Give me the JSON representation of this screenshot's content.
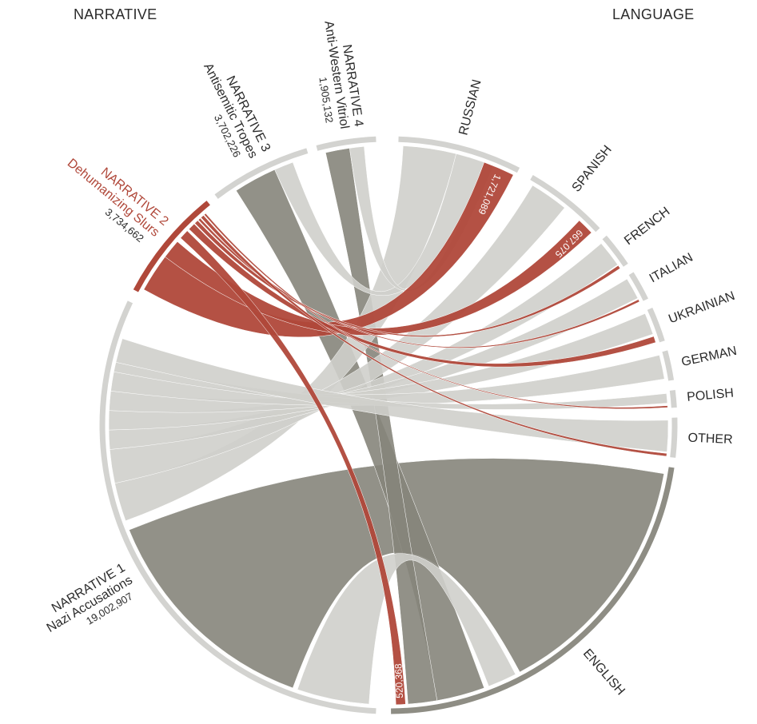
{
  "headers": {
    "left": "NARRATIVE",
    "right": "LANGUAGE"
  },
  "colors": {
    "highlight": "#b0483a",
    "narrative_dark": "#86857b",
    "language_light": "#cfcfcb",
    "arc_dark": "#8e8d84",
    "arc_light": "#d3d3d0",
    "text": "#2b2b2b"
  },
  "narratives": [
    {
      "id": "n1",
      "line1": "NARRATIVE 1",
      "line2": "Nazi Accusations",
      "value_label": "19,002,907",
      "value": 19002907,
      "highlight": false
    },
    {
      "id": "n2",
      "line1": "NARRATIVE 2",
      "line2": "Dehumanizing Slurs",
      "value_label": "3,734,662",
      "value": 3734662,
      "highlight": true
    },
    {
      "id": "n3",
      "line1": "NARRATIVE 3",
      "line2": "Antisemitic Tropes",
      "value_label": "3,702,226",
      "value": 3702226,
      "highlight": false
    },
    {
      "id": "n4",
      "line1": "NARRATIVE 4",
      "line2": "Anti-Western Vitriol",
      "value_label": "1,905,132",
      "value": 1905132,
      "highlight": false
    }
  ],
  "languages": [
    {
      "id": "russian",
      "label": "RUSSIAN"
    },
    {
      "id": "spanish",
      "label": "SPANISH"
    },
    {
      "id": "french",
      "label": "FRENCH"
    },
    {
      "id": "italian",
      "label": "ITALIAN"
    },
    {
      "id": "ukrainian",
      "label": "UKRAINIAN"
    },
    {
      "id": "german",
      "label": "GERMAN"
    },
    {
      "id": "polish",
      "label": "POLISH"
    },
    {
      "id": "other",
      "label": "OTHER"
    },
    {
      "id": "english",
      "label": "ENGLISH"
    }
  ],
  "highlight_flows": [
    {
      "language": "russian",
      "value_label": "1,721,089",
      "value": 1721089
    },
    {
      "language": "spanish",
      "value_label": "667,075",
      "value": 667075
    },
    {
      "language": "english",
      "value_label": "520,368",
      "value": 520368
    }
  ]
}
